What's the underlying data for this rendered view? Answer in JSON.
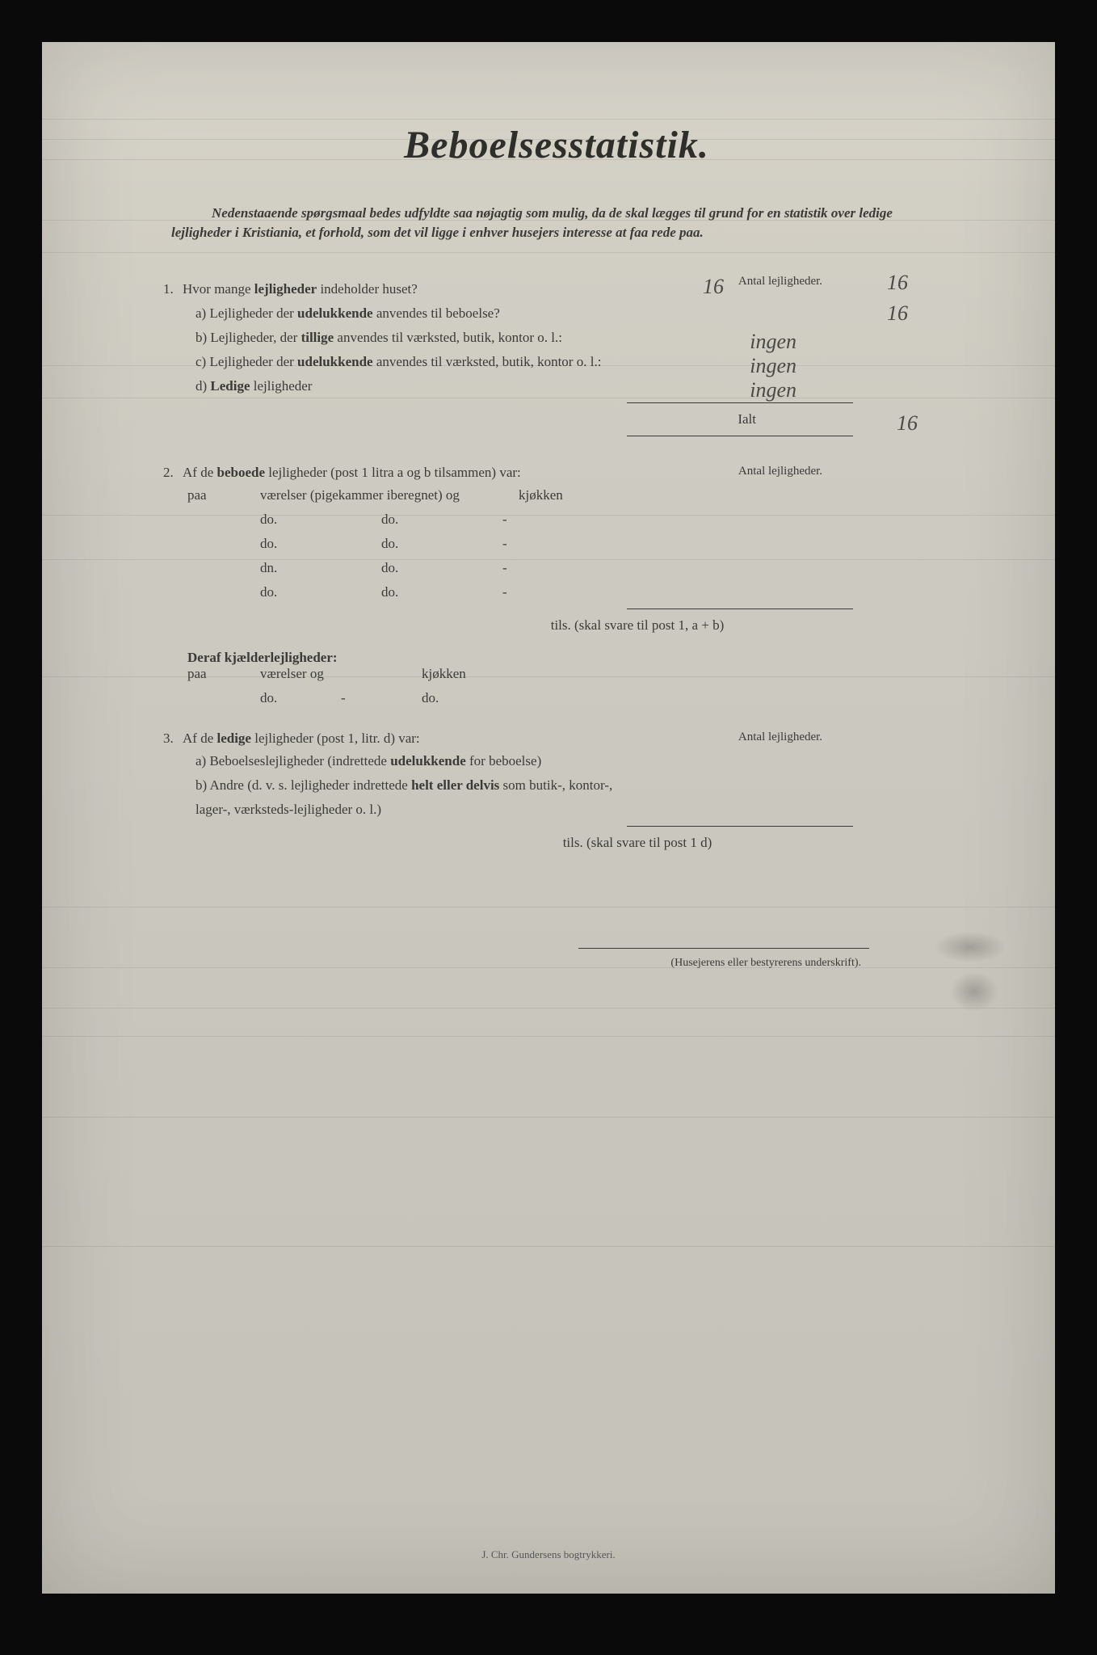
{
  "title": "Beboelsesstatistik.",
  "intro": "Nedenstaaende spørgsmaal bedes udfyldte saa nøjagtig som mulig, da de skal lægges til grund for en statistik over ledige lejligheder i Kristiania, et forhold, som det vil ligge i enhver husejers interesse at faa rede paa.",
  "q1": {
    "num": "1.",
    "text_pre": "Hvor mange ",
    "text_bold": "lejligheder",
    "text_post": " indeholder huset?",
    "answer": "16",
    "right_label": "Antal lejligheder.",
    "right_answer": "16",
    "a": {
      "label": "a)",
      "pre": "Lejligheder der ",
      "bold": "udelukkende",
      "post": " anvendes til beboelse?",
      "answer": "16"
    },
    "b": {
      "label": "b)",
      "pre": "Lejligheder, der ",
      "bold": "tillige",
      "post": " anvendes til værksted, butik, kontor o. l.:",
      "answer": "ingen"
    },
    "c": {
      "label": "c)",
      "pre": "Lejligheder der ",
      "bold": "udelukkende",
      "post": " anvendes til værksted, butik, kontor o. l.:",
      "answer": "ingen"
    },
    "d": {
      "label": "d)",
      "bold": "Ledige",
      "post": " lejligheder",
      "answer": "ingen"
    },
    "ialt_label": "Ialt",
    "ialt_answer": "16"
  },
  "q2": {
    "num": "2.",
    "text_pre": "Af de ",
    "text_bold": "beboede",
    "text_post": " lejligheder (post 1 litra a og b tilsammen) var:",
    "right_label": "Antal lejligheder.",
    "row1": {
      "paa": "paa",
      "vaer": "værelser (pigekammer iberegnet) og",
      "kjok": "kjøkken"
    },
    "do_rows": [
      {
        "c1": "do.",
        "c2": "do.",
        "c3": "-"
      },
      {
        "c1": "do.",
        "c2": "do.",
        "c3": "-"
      },
      {
        "c1": "dn.",
        "c2": "do.",
        "c3": "-"
      },
      {
        "c1": "do.",
        "c2": "do.",
        "c3": "-"
      }
    ],
    "tils": "tils. (skal svare til post 1, a + b)",
    "deraf_bold": "Deraf kjælderlejligheder:",
    "row2": {
      "paa": "paa",
      "vaer": "værelser og",
      "kjok": "kjøkken"
    },
    "row3": {
      "c1": "do.",
      "c2": "-",
      "c3": "do."
    }
  },
  "q3": {
    "num": "3.",
    "text_pre": "Af de ",
    "text_bold": "ledige",
    "text_post": " lejligheder (post 1, litr. d) var:",
    "right_label": "Antal lejligheder.",
    "a": {
      "label": "a)",
      "pre": "Beboelseslejligheder (indrettede ",
      "bold": "udelukkende",
      "post": " for beboelse)"
    },
    "b": {
      "label": "b)",
      "pre": "Andre (d. v. s. lejligheder indrettede ",
      "bold": "helt eller delvis",
      "post": " som butik-, kontor-,",
      "line2": "lager-, værksteds-lejligheder o. l.)"
    },
    "tils": "tils. (skal svare til post 1 d)"
  },
  "signature_label": "(Husejerens eller bestyrerens underskrift).",
  "printer": "J. Chr. Gundersens bogtrykkeri.",
  "colors": {
    "paper": "#cdcbc1",
    "text": "#3a3a36",
    "hand": "#4a4a44",
    "background": "#0a0a0a"
  },
  "scan_line_positions": [
    95,
    120,
    145,
    220,
    260,
    400,
    440,
    585,
    640,
    785,
    1070,
    1145,
    1195,
    1230,
    1330,
    1490
  ]
}
